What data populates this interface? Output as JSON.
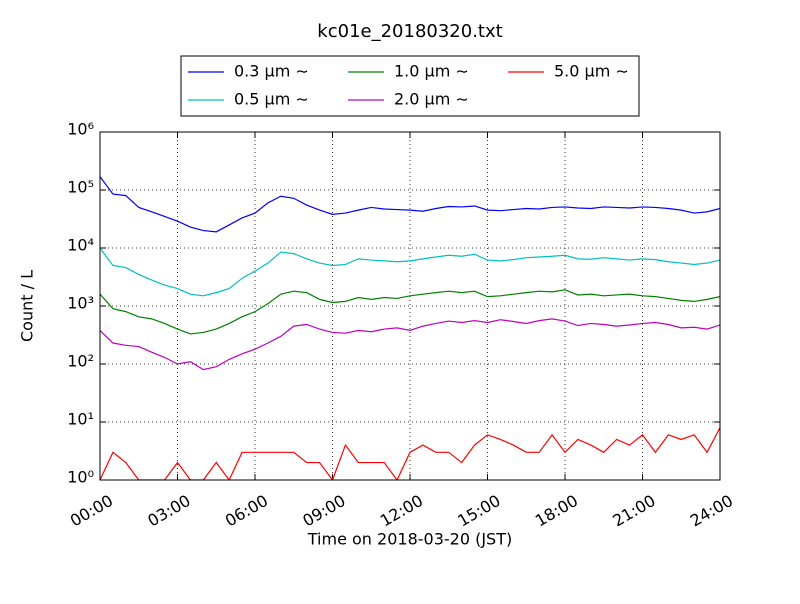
{
  "chart_data": {
    "type": "line",
    "title": "kc01e_20180320.txt",
    "xlabel": "Time on 2018-03-20 (JST)",
    "ylabel": "Count / L",
    "yscale": "log",
    "grid": true,
    "legend": "upper center",
    "x": [
      0,
      0.5,
      1,
      1.5,
      2,
      2.5,
      3,
      3.5,
      4,
      4.5,
      5,
      5.5,
      6,
      6.5,
      7,
      7.5,
      8,
      8.5,
      9,
      9.5,
      10,
      10.5,
      11,
      11.5,
      12,
      12.5,
      13,
      13.5,
      14,
      14.5,
      15,
      15.5,
      16,
      16.5,
      17,
      17.5,
      18,
      18.5,
      19,
      19.5,
      20,
      20.5,
      21,
      21.5,
      22,
      22.5,
      23,
      23.5,
      24
    ],
    "xlim": [
      0,
      24
    ],
    "xticks": [
      {
        "value": 0,
        "label": "00:00"
      },
      {
        "value": 3,
        "label": "03:00"
      },
      {
        "value": 6,
        "label": "06:00"
      },
      {
        "value": 9,
        "label": "09:00"
      },
      {
        "value": 12,
        "label": "12:00"
      },
      {
        "value": 15,
        "label": "15:00"
      },
      {
        "value": 18,
        "label": "18:00"
      },
      {
        "value": 21,
        "label": "21:00"
      },
      {
        "value": 24,
        "label": "24:00"
      }
    ],
    "ylim": [
      1,
      1000000
    ],
    "yticks": [
      {
        "value": 1,
        "label": "10⁰"
      },
      {
        "value": 10,
        "label": "10¹"
      },
      {
        "value": 100,
        "label": "10²"
      },
      {
        "value": 1000,
        "label": "10³"
      },
      {
        "value": 10000,
        "label": "10⁴"
      },
      {
        "value": 100000,
        "label": "10⁵"
      },
      {
        "value": 1000000,
        "label": "10⁶"
      }
    ],
    "series": [
      {
        "name": "0.3 μm ∼",
        "color": "#0000ff",
        "values": [
          170000,
          85000,
          80000,
          50000,
          42000,
          35000,
          29000,
          23000,
          20000,
          19000,
          25000,
          33000,
          40000,
          60000,
          78000,
          72000,
          55000,
          45000,
          38000,
          40000,
          45000,
          50000,
          47000,
          46000,
          45000,
          43000,
          48000,
          52000,
          51000,
          53000,
          45000,
          44000,
          46000,
          48000,
          47000,
          50000,
          51000,
          49000,
          48000,
          51000,
          50000,
          49000,
          51000,
          50000,
          48000,
          45000,
          40000,
          42000,
          48000
        ]
      },
      {
        "name": "0.5 μm ∼",
        "color": "#00bfbf",
        "values": [
          10000,
          5000,
          4600,
          3500,
          2800,
          2300,
          2000,
          1600,
          1500,
          1700,
          2000,
          3000,
          4000,
          5500,
          8500,
          8000,
          6500,
          5500,
          5000,
          5200,
          6500,
          6200,
          6000,
          5800,
          6000,
          6500,
          7000,
          7500,
          7200,
          7800,
          6200,
          6000,
          6300,
          6800,
          7000,
          7200,
          7500,
          6500,
          6400,
          6800,
          6500,
          6200,
          6500,
          6300,
          5800,
          5500,
          5200,
          5500,
          6200
        ]
      },
      {
        "name": "1.0 μm ∼",
        "color": "#008000",
        "values": [
          1600,
          900,
          800,
          650,
          600,
          500,
          400,
          330,
          350,
          400,
          500,
          650,
          800,
          1100,
          1600,
          1800,
          1700,
          1300,
          1150,
          1200,
          1400,
          1300,
          1400,
          1350,
          1500,
          1600,
          1700,
          1800,
          1700,
          1800,
          1450,
          1500,
          1600,
          1700,
          1800,
          1750,
          1900,
          1550,
          1600,
          1500,
          1550,
          1600,
          1500,
          1450,
          1350,
          1250,
          1200,
          1300,
          1450
        ]
      },
      {
        "name": "2.0 μm ∼",
        "color": "#bf00bf",
        "values": [
          380,
          230,
          210,
          200,
          160,
          130,
          100,
          110,
          80,
          90,
          120,
          150,
          180,
          230,
          300,
          450,
          480,
          400,
          350,
          340,
          380,
          360,
          400,
          420,
          380,
          450,
          500,
          550,
          520,
          560,
          520,
          580,
          540,
          500,
          560,
          600,
          550,
          460,
          500,
          480,
          450,
          470,
          500,
          520,
          480,
          420,
          430,
          400,
          470
        ]
      },
      {
        "name": "5.0 μm ∼",
        "color": "#ff0000",
        "values": [
          1,
          3,
          2,
          1,
          1,
          1,
          2,
          1,
          1,
          2,
          1,
          3,
          3,
          3,
          3,
          3,
          2,
          2,
          1,
          4,
          2,
          2,
          2,
          1,
          3,
          4,
          3,
          3,
          2,
          4,
          6,
          5,
          4,
          3,
          3,
          6,
          3,
          5,
          4,
          3,
          5,
          4,
          6,
          3,
          6,
          5,
          6,
          3,
          8
        ]
      }
    ]
  }
}
